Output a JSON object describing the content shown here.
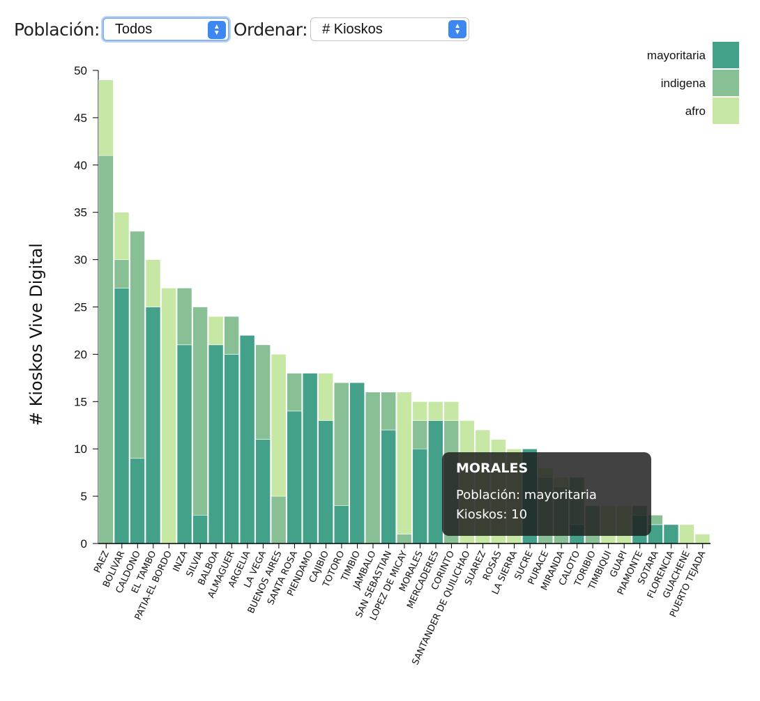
{
  "controls": {
    "poblacion_label": "Población:",
    "poblacion_value": "Todos",
    "ordenar_label": "Ordenar:",
    "ordenar_value": "# Kioskos"
  },
  "colors": {
    "mayoritaria": "#42a188",
    "indigena": "#88bf95",
    "afro": "#c6e8a4"
  },
  "tooltip": {
    "title": "MORALES",
    "poblacion_line": "Población: mayoritaria",
    "kioskos_line": "Kioskos: 10"
  },
  "chart_data": {
    "type": "bar",
    "stacked": true,
    "ylabel": "# Kioskos Vive Digital",
    "xlabel": "",
    "ylim": [
      0,
      50
    ],
    "yticks": [
      0,
      5,
      10,
      15,
      20,
      25,
      30,
      35,
      40,
      45,
      50
    ],
    "legend_position": "top-right",
    "categories": [
      "PAEZ",
      "BOLIVAR",
      "CALDONO",
      "EL TAMBO",
      "PATIA-EL BORDO",
      "INZA",
      "SILVIA",
      "BALBOA",
      "ALMAGUER",
      "ARGELIA",
      "LA VEGA",
      "BUENOS AIRES",
      "SANTA ROSA",
      "PIENDAMO",
      "CAJIBIO",
      "TOTORO",
      "TIMBIO",
      "JAMBALO",
      "SAN SEBASTIAN",
      "LOPEZ DE MICAY",
      "MORALES",
      "MERCADERES",
      "CORINTO",
      "SANTANDER DE QUILICHAO",
      "SUAREZ",
      "ROSAS",
      "LA SIERRA",
      "SUCRE",
      "PURACE",
      "MIRANDA",
      "CALOTO",
      "TORIBIO",
      "TIMBIQUI",
      "GUAPI",
      "PIAMONTE",
      "SOTARA",
      "FLORENCIA",
      "GUACHENE",
      "PUERTO TEJADA"
    ],
    "series": [
      {
        "name": "mayoritaria",
        "values": [
          0,
          27,
          9,
          25,
          0,
          21,
          3,
          21,
          20,
          22,
          11,
          0,
          14,
          18,
          13,
          4,
          17,
          0,
          12,
          0,
          10,
          13,
          0,
          0,
          0,
          0,
          0,
          10,
          0,
          0,
          2,
          0,
          0,
          0,
          3,
          2,
          2,
          0,
          0
        ]
      },
      {
        "name": "indigena",
        "values": [
          41,
          3,
          24,
          0,
          0,
          6,
          22,
          0,
          4,
          0,
          10,
          5,
          4,
          0,
          0,
          13,
          0,
          16,
          4,
          1,
          3,
          0,
          13,
          0,
          0,
          0,
          0,
          0,
          7,
          6,
          5,
          4,
          0,
          0,
          1,
          1,
          0,
          0,
          0
        ]
      },
      {
        "name": "afro",
        "values": [
          8,
          5,
          0,
          5,
          27,
          0,
          0,
          3,
          0,
          0,
          0,
          15,
          0,
          0,
          5,
          0,
          0,
          0,
          0,
          15,
          2,
          2,
          2,
          13,
          12,
          11,
          10,
          0,
          1,
          1,
          0,
          0,
          4,
          4,
          0,
          0,
          0,
          2,
          1
        ]
      }
    ]
  }
}
